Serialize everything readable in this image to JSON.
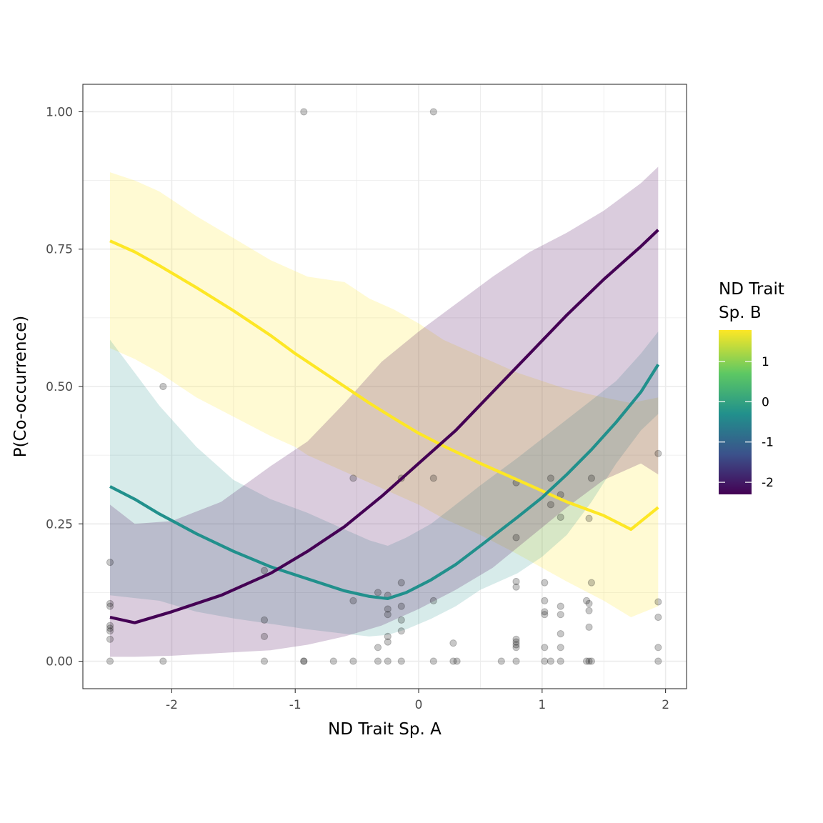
{
  "chart_data": {
    "type": "line",
    "title": "",
    "xlabel": "ND Trait Sp. A",
    "ylabel": "P(Co-occurrence)",
    "xlim": [
      -2.72,
      2.17
    ],
    "ylim": [
      -0.05,
      1.05
    ],
    "x_ticks": [
      -2,
      -1,
      0,
      1,
      2
    ],
    "x_tick_labels": [
      "-2",
      "-1",
      "0",
      "1",
      "2"
    ],
    "y_ticks": [
      0,
      0.25,
      0.5,
      0.75,
      1
    ],
    "y_tick_labels": [
      "0.00",
      "0.25",
      "0.50",
      "0.75",
      "1.00"
    ],
    "grid": true,
    "legend": {
      "title_lines": [
        "ND Trait",
        "Sp. B"
      ],
      "placement": "right",
      "type": "colorbar",
      "range": [
        -2.3,
        1.78
      ],
      "ticks": [
        1,
        0,
        -1,
        -2
      ],
      "tick_labels": [
        "1",
        "0",
        "-1",
        "-2"
      ],
      "stops": [
        {
          "value": -2.3,
          "color": "#440154"
        },
        {
          "value": -1.3,
          "color": "#3B528B"
        },
        {
          "value": -0.3,
          "color": "#21908C"
        },
        {
          "value": 0.7,
          "color": "#5DC863"
        },
        {
          "value": 1.78,
          "color": "#FDE725"
        }
      ]
    },
    "series": [
      {
        "color": "#FDE725",
        "ribbon_opacity": 0.2,
        "x": [
          -2.5,
          -2.3,
          -2.1,
          -1.8,
          -1.5,
          -1.2,
          -1.0,
          -0.9,
          -0.6,
          -0.4,
          -0.2,
          0.0,
          0.2,
          0.5,
          0.8,
          1.0,
          1.2,
          1.5,
          1.72,
          1.94
        ],
        "y": [
          0.765,
          0.745,
          0.72,
          0.68,
          0.638,
          0.593,
          0.56,
          0.545,
          0.5,
          0.47,
          0.442,
          0.415,
          0.392,
          0.36,
          0.33,
          0.31,
          0.29,
          0.265,
          0.24,
          0.28
        ],
        "lower": [
          0.57,
          0.55,
          0.525,
          0.48,
          0.445,
          0.41,
          0.39,
          0.375,
          0.345,
          0.325,
          0.305,
          0.285,
          0.26,
          0.23,
          0.195,
          0.17,
          0.145,
          0.11,
          0.08,
          0.1
        ],
        "upper": [
          0.89,
          0.875,
          0.855,
          0.81,
          0.77,
          0.73,
          0.71,
          0.7,
          0.69,
          0.66,
          0.64,
          0.615,
          0.585,
          0.555,
          0.525,
          0.51,
          0.495,
          0.48,
          0.47,
          0.48
        ]
      },
      {
        "color": "#21908C",
        "ribbon_opacity": 0.18,
        "x": [
          -2.5,
          -2.3,
          -2.1,
          -1.8,
          -1.5,
          -1.2,
          -0.9,
          -0.6,
          -0.4,
          -0.25,
          -0.1,
          0.1,
          0.3,
          0.5,
          0.8,
          1.0,
          1.2,
          1.4,
          1.6,
          1.8,
          1.94
        ],
        "y": [
          0.318,
          0.295,
          0.268,
          0.232,
          0.2,
          0.172,
          0.15,
          0.128,
          0.118,
          0.114,
          0.125,
          0.148,
          0.176,
          0.21,
          0.262,
          0.298,
          0.34,
          0.385,
          0.435,
          0.49,
          0.54
        ],
        "lower": [
          0.12,
          0.115,
          0.11,
          0.09,
          0.078,
          0.068,
          0.058,
          0.05,
          0.045,
          0.048,
          0.058,
          0.077,
          0.1,
          0.13,
          0.16,
          0.19,
          0.23,
          0.29,
          0.36,
          0.42,
          0.45
        ],
        "upper": [
          0.585,
          0.525,
          0.465,
          0.39,
          0.33,
          0.295,
          0.27,
          0.24,
          0.22,
          0.21,
          0.225,
          0.25,
          0.285,
          0.32,
          0.37,
          0.405,
          0.44,
          0.475,
          0.51,
          0.56,
          0.6
        ]
      },
      {
        "color": "#440154",
        "ribbon_opacity": 0.2,
        "x": [
          -2.5,
          -2.3,
          -2.0,
          -1.6,
          -1.2,
          -0.9,
          -0.6,
          -0.3,
          0.0,
          0.3,
          0.6,
          0.9,
          1.2,
          1.5,
          1.8,
          1.94
        ],
        "y": [
          0.08,
          0.07,
          0.09,
          0.12,
          0.16,
          0.2,
          0.245,
          0.3,
          0.36,
          0.42,
          0.49,
          0.56,
          0.63,
          0.695,
          0.755,
          0.785
        ],
        "lower": [
          0.008,
          0.008,
          0.01,
          0.015,
          0.02,
          0.03,
          0.045,
          0.065,
          0.095,
          0.13,
          0.17,
          0.225,
          0.28,
          0.33,
          0.36,
          0.34
        ],
        "upper": [
          0.285,
          0.25,
          0.255,
          0.29,
          0.355,
          0.4,
          0.47,
          0.545,
          0.6,
          0.65,
          0.7,
          0.745,
          0.78,
          0.82,
          0.87,
          0.9
        ]
      }
    ],
    "points": [
      [
        -2.5,
        0
      ],
      [
        -2.5,
        0.04
      ],
      [
        -2.5,
        0.055
      ],
      [
        -2.5,
        0.06
      ],
      [
        -2.5,
        0.065
      ],
      [
        -2.5,
        0.1
      ],
      [
        -2.5,
        0.105
      ],
      [
        -2.5,
        0.18
      ],
      [
        -2.07,
        0
      ],
      [
        -2.07,
        0.5
      ],
      [
        -1.25,
        0
      ],
      [
        -1.25,
        0.045
      ],
      [
        -1.25,
        0.075
      ],
      [
        -1.25,
        0.165
      ],
      [
        -0.93,
        0
      ],
      [
        -0.93,
        0
      ],
      [
        -0.93,
        1.0
      ],
      [
        -0.69,
        0
      ],
      [
        -0.53,
        0
      ],
      [
        -0.53,
        0.11
      ],
      [
        -0.53,
        0.333
      ],
      [
        -0.33,
        0
      ],
      [
        -0.33,
        0.025
      ],
      [
        -0.33,
        0.125
      ],
      [
        -0.25,
        0
      ],
      [
        -0.25,
        0.035
      ],
      [
        -0.25,
        0.045
      ],
      [
        -0.25,
        0.085
      ],
      [
        -0.25,
        0.095
      ],
      [
        -0.25,
        0.12
      ],
      [
        -0.14,
        0
      ],
      [
        -0.14,
        0.055
      ],
      [
        -0.14,
        0.075
      ],
      [
        -0.14,
        0.1
      ],
      [
        -0.14,
        0.143
      ],
      [
        -0.14,
        0.333
      ],
      [
        0.12,
        0
      ],
      [
        0.12,
        0.11
      ],
      [
        0.12,
        0.333
      ],
      [
        0.12,
        1.0
      ],
      [
        0.28,
        0
      ],
      [
        0.28,
        0.033
      ],
      [
        0.31,
        0
      ],
      [
        0.67,
        0
      ],
      [
        0.79,
        0
      ],
      [
        0.79,
        0.025
      ],
      [
        0.79,
        0.03
      ],
      [
        0.79,
        0.035
      ],
      [
        0.79,
        0.04
      ],
      [
        0.79,
        0.135
      ],
      [
        0.79,
        0.145
      ],
      [
        0.79,
        0.225
      ],
      [
        0.79,
        0.325
      ],
      [
        1.02,
        0
      ],
      [
        1.02,
        0.025
      ],
      [
        1.02,
        0.085
      ],
      [
        1.02,
        0.09
      ],
      [
        1.02,
        0.11
      ],
      [
        1.02,
        0.143
      ],
      [
        1.07,
        0
      ],
      [
        1.07,
        0.285
      ],
      [
        1.07,
        0.333
      ],
      [
        1.15,
        0
      ],
      [
        1.15,
        0.025
      ],
      [
        1.15,
        0.05
      ],
      [
        1.15,
        0.085
      ],
      [
        1.15,
        0.1
      ],
      [
        1.15,
        0.262
      ],
      [
        1.15,
        0.303
      ],
      [
        1.36,
        0
      ],
      [
        1.36,
        0.11
      ],
      [
        1.38,
        0
      ],
      [
        1.38,
        0.062
      ],
      [
        1.38,
        0.092
      ],
      [
        1.38,
        0.105
      ],
      [
        1.38,
        0.26
      ],
      [
        1.4,
        0
      ],
      [
        1.4,
        0.143
      ],
      [
        1.4,
        0.333
      ],
      [
        1.94,
        0
      ],
      [
        1.94,
        0.025
      ],
      [
        1.94,
        0.08
      ],
      [
        1.94,
        0.108
      ],
      [
        1.94,
        0.378
      ]
    ]
  }
}
